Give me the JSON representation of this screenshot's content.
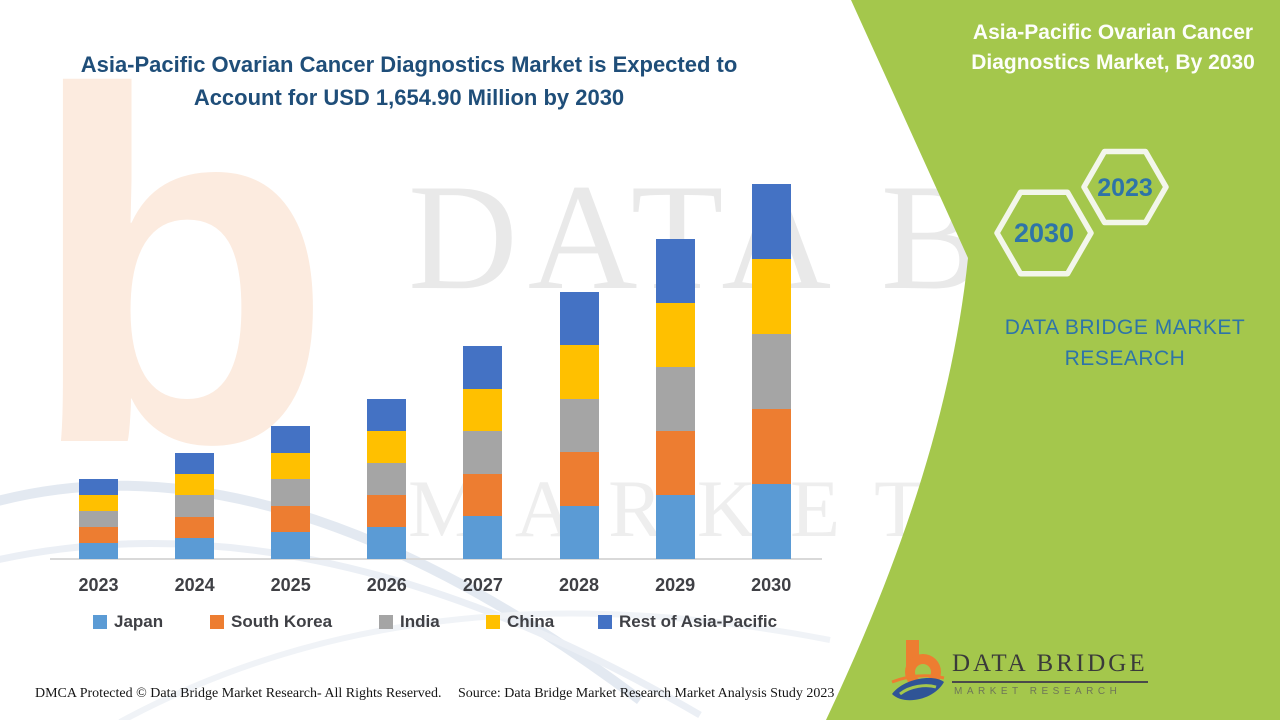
{
  "header": {
    "title_line1": "Asia-Pacific Ovarian Cancer Diagnostics Market is Expected to",
    "title_line2": "Account for USD 1,654.90 Million by 2030"
  },
  "side_panel": {
    "title": "Asia-Pacific Ovarian Cancer Diagnostics Market, By 2030",
    "hexagons": [
      {
        "label": "2030"
      },
      {
        "label": "2023"
      }
    ],
    "brand_line1": "DATA BRIDGE MARKET",
    "brand_line2": "RESEARCH",
    "background_color": "#A4C74C",
    "text_color": "#2E74A8"
  },
  "logo": {
    "name": "DATA BRIDGE",
    "subtitle": "MARKET RESEARCH"
  },
  "watermark": {
    "letter": "b",
    "line1": "DATA BRIDGE",
    "line2": "MARKET RESEARCH"
  },
  "footer": {
    "left": "DMCA Protected © Data Bridge Market Research- All Rights Reserved.",
    "source": "Source: Data Bridge Market Research Market Analysis Study 2023"
  },
  "chart_data": {
    "type": "bar",
    "stacked": true,
    "title": "Asia-Pacific Ovarian Cancer Diagnostics Market (USD Million)",
    "unit": "USD Million",
    "categories": [
      "2023",
      "2024",
      "2025",
      "2026",
      "2027",
      "2028",
      "2029",
      "2030"
    ],
    "totals": [
      353,
      468,
      587,
      706,
      940,
      1178,
      1412,
      1654.9
    ],
    "highlight": {
      "year": "2030",
      "value": "USD 1,654.90 Million"
    },
    "series": [
      {
        "name": "Japan",
        "color": "#5B9BD5",
        "values": [
          70.6,
          93.6,
          117.4,
          141.2,
          188.0,
          235.6,
          282.4,
          331.0
        ]
      },
      {
        "name": "South Korea",
        "color": "#ED7D31",
        "values": [
          70.6,
          93.6,
          117.4,
          141.2,
          188.0,
          235.6,
          282.4,
          331.0
        ]
      },
      {
        "name": "India",
        "color": "#A5A5A5",
        "values": [
          70.6,
          93.6,
          117.4,
          141.2,
          188.0,
          235.6,
          282.4,
          331.0
        ]
      },
      {
        "name": "China",
        "color": "#FFC000",
        "values": [
          70.6,
          93.6,
          117.4,
          141.2,
          188.0,
          235.6,
          282.4,
          331.0
        ]
      },
      {
        "name": "Rest of Asia-Pacific",
        "color": "#4472C4",
        "values": [
          70.6,
          93.6,
          117.4,
          141.2,
          188.0,
          235.6,
          282.4,
          331.0
        ]
      }
    ],
    "legend_position": "bottom",
    "gridlines": false,
    "y_axis_visible": false,
    "ylim": [
      0,
      1800
    ]
  }
}
